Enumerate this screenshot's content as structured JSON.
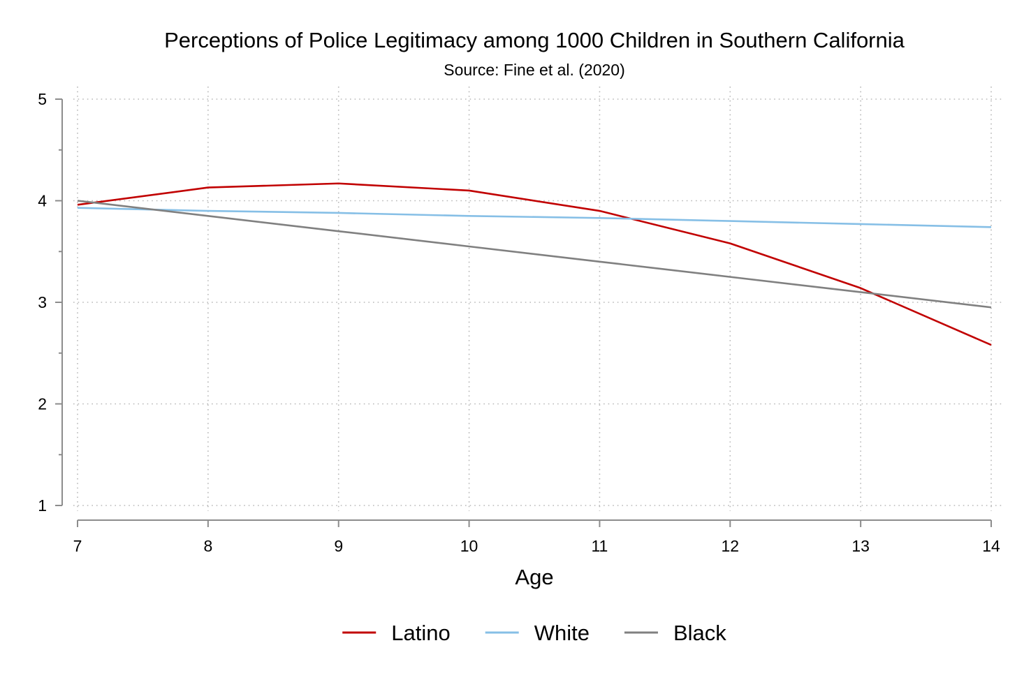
{
  "chart_data": {
    "type": "line",
    "title": "Perceptions of Police Legitimacy among 1000 Children in Southern California",
    "subtitle": "Source: Fine et al. (2020)",
    "xlabel": "Age",
    "ylabel": "",
    "x": [
      7,
      8,
      9,
      10,
      11,
      12,
      13,
      14
    ],
    "xlim": [
      7,
      14
    ],
    "ylim": [
      1,
      5
    ],
    "x_ticks": [
      7,
      8,
      9,
      10,
      11,
      12,
      13,
      14
    ],
    "y_ticks": [
      1,
      2,
      3,
      4,
      5
    ],
    "y_minor_step": 0.5,
    "grid": true,
    "legend_position": "bottom",
    "series": [
      {
        "name": "Latino",
        "color": "#c10000",
        "values": [
          3.96,
          4.13,
          4.17,
          4.1,
          3.9,
          3.58,
          3.14,
          2.58
        ]
      },
      {
        "name": "White",
        "color": "#86bfe6",
        "values": [
          3.93,
          3.9,
          3.88,
          3.85,
          3.83,
          3.8,
          3.77,
          3.74
        ]
      },
      {
        "name": "Black",
        "color": "#808080",
        "values": [
          4.0,
          3.85,
          3.7,
          3.55,
          3.4,
          3.25,
          3.1,
          2.95
        ]
      }
    ]
  }
}
